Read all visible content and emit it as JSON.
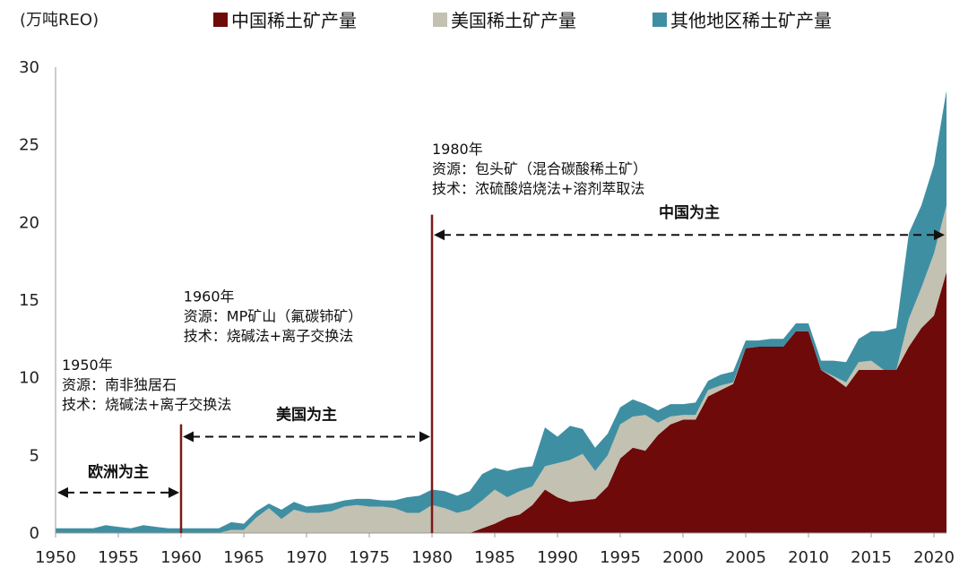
{
  "colors": {
    "china": "#6e0a0a",
    "usa": "#c3c1b1",
    "other": "#3f8fa3",
    "divider": "#7a1a1a"
  },
  "chart_data": {
    "type": "area",
    "stacked": true,
    "unit_label": "(万吨REO)",
    "x": [
      1950,
      1951,
      1952,
      1953,
      1954,
      1955,
      1956,
      1957,
      1958,
      1959,
      1960,
      1961,
      1962,
      1963,
      1964,
      1965,
      1966,
      1967,
      1968,
      1969,
      1970,
      1971,
      1972,
      1973,
      1974,
      1975,
      1976,
      1977,
      1978,
      1979,
      1980,
      1981,
      1982,
      1983,
      1984,
      1985,
      1986,
      1987,
      1988,
      1989,
      1990,
      1991,
      1992,
      1993,
      1994,
      1995,
      1996,
      1997,
      1998,
      1999,
      2000,
      2001,
      2002,
      2003,
      2004,
      2005,
      2006,
      2007,
      2008,
      2009,
      2010,
      2011,
      2012,
      2013,
      2014,
      2015,
      2016,
      2017,
      2018,
      2019,
      2020,
      2021
    ],
    "series": [
      {
        "name": "中国稀土矿产量",
        "key": "china",
        "values": [
          0,
          0,
          0,
          0,
          0,
          0,
          0,
          0,
          0,
          0,
          0,
          0,
          0,
          0,
          0,
          0,
          0,
          0,
          0,
          0,
          0,
          0,
          0,
          0,
          0,
          0,
          0,
          0,
          0,
          0,
          0,
          0,
          0,
          0,
          0.3,
          0.6,
          1.0,
          1.2,
          1.8,
          2.8,
          2.3,
          2.0,
          2.1,
          2.2,
          3.0,
          4.8,
          5.5,
          5.3,
          6.3,
          7.0,
          7.3,
          7.3,
          8.8,
          9.2,
          9.6,
          11.9,
          12.0,
          12.0,
          12.0,
          13.0,
          13.0,
          10.5,
          10.0,
          9.4,
          10.5,
          10.5,
          10.5,
          10.5,
          12.0,
          13.2,
          14.0,
          16.8
        ]
      },
      {
        "name": "美国稀土矿产量",
        "key": "usa",
        "values": [
          0,
          0,
          0,
          0,
          0,
          0,
          0,
          0,
          0,
          0,
          0,
          0,
          0,
          0,
          0.2,
          0.2,
          1.0,
          1.6,
          0.9,
          1.5,
          1.3,
          1.3,
          1.4,
          1.7,
          1.8,
          1.7,
          1.7,
          1.6,
          1.3,
          1.3,
          1.8,
          1.6,
          1.3,
          1.5,
          1.8,
          2.2,
          1.3,
          1.5,
          1.2,
          1.5,
          2.2,
          2.7,
          3.0,
          1.8,
          2.0,
          2.2,
          2.0,
          2.3,
          0.8,
          0.5,
          0.3,
          0.3,
          0.4,
          0.3,
          0.1,
          0,
          0,
          0,
          0,
          0,
          0,
          0,
          0.1,
          0.3,
          0.5,
          0.6,
          0,
          0,
          1.8,
          2.6,
          4.0,
          4.3
        ]
      },
      {
        "name": "其他地区稀土矿产量",
        "key": "other",
        "values": [
          0.3,
          0.3,
          0.3,
          0.3,
          0.5,
          0.4,
          0.3,
          0.5,
          0.4,
          0.3,
          0.3,
          0.3,
          0.3,
          0.3,
          0.5,
          0.4,
          0.4,
          0.3,
          0.6,
          0.5,
          0.4,
          0.5,
          0.5,
          0.4,
          0.4,
          0.5,
          0.4,
          0.5,
          1.0,
          1.1,
          1.0,
          1.1,
          1.1,
          1.2,
          1.7,
          1.4,
          1.7,
          1.5,
          1.3,
          2.5,
          1.7,
          2.2,
          1.6,
          1.5,
          1.4,
          1.1,
          1.1,
          0.7,
          0.8,
          0.8,
          0.7,
          0.8,
          0.6,
          0.7,
          0.7,
          0.5,
          0.4,
          0.5,
          0.5,
          0.5,
          0.5,
          0.6,
          1.0,
          1.3,
          1.5,
          1.9,
          2.5,
          2.7,
          5.5,
          5.3,
          5.7,
          7.4
        ]
      }
    ],
    "xlim": [
      1950,
      2021
    ],
    "ylim": [
      0,
      30
    ],
    "x_ticks": [
      1950,
      1955,
      1960,
      1965,
      1970,
      1975,
      1980,
      1985,
      1990,
      1995,
      2000,
      2005,
      2010,
      2015,
      2020
    ],
    "y_ticks": [
      0,
      5,
      10,
      15,
      20,
      25,
      30
    ],
    "legend_position": "top",
    "era_dividers": [
      1960,
      1980
    ],
    "eras": [
      {
        "label": "欧洲为主",
        "from": 1950,
        "to": 1960,
        "y": 2.6,
        "label_y": 3.6
      },
      {
        "label": "美国为主",
        "from": 1960,
        "to": 1980,
        "y": 6.2,
        "label_y": 7.3
      },
      {
        "label": "中国为主",
        "from": 1980,
        "to": 2021,
        "y": 19.2,
        "label_y": 20.3
      }
    ],
    "annotations": [
      {
        "lines": [
          "1950年",
          "资源：南非独居石",
          "技术：烧碱法+离子交换法"
        ],
        "x": 1950.5,
        "y": 10.5
      },
      {
        "lines": [
          "1960年",
          "资源：MP矿山（氟碳铈矿）",
          "技术：烧碱法+离子交换法"
        ],
        "x": 1960.2,
        "y": 14.9
      },
      {
        "lines": [
          "1980年",
          "资源：包头矿（混合碳酸稀土矿）",
          "技术：浓硫酸焙烧法+溶剂萃取法"
        ],
        "x": 1980.0,
        "y": 24.4
      }
    ]
  }
}
